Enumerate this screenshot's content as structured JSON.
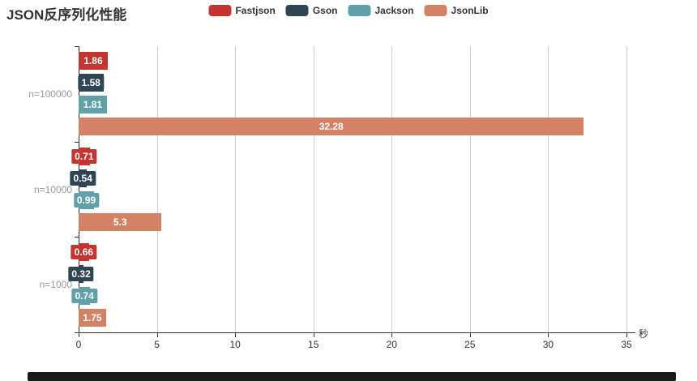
{
  "title": "JSON反序列化性能",
  "legend": {
    "items": [
      {
        "label": "Fastjson",
        "color": "#c23531"
      },
      {
        "label": "Gson",
        "color": "#2f4554"
      },
      {
        "label": "Jackson",
        "color": "#61a0a8"
      },
      {
        "label": "JsonLib",
        "color": "#d48265"
      }
    ]
  },
  "chart_data": {
    "type": "bar",
    "orientation": "horizontal",
    "title": "JSON反序列化性能",
    "categories": [
      "n=100000",
      "n=10000",
      "n=1000"
    ],
    "series": [
      {
        "name": "Fastjson",
        "color": "#c23531",
        "values": [
          1.86,
          0.71,
          0.66
        ]
      },
      {
        "name": "Gson",
        "color": "#2f4554",
        "values": [
          1.58,
          0.54,
          0.32
        ]
      },
      {
        "name": "Jackson",
        "color": "#61a0a8",
        "values": [
          1.81,
          0.99,
          0.74
        ]
      },
      {
        "name": "JsonLib",
        "color": "#d48265",
        "values": [
          32.28,
          5.3,
          1.75
        ]
      }
    ],
    "value_labels": [
      "1.86",
      "1.58",
      "1.81",
      "32.28",
      "0.71",
      "0.54",
      "0.99",
      "5.3",
      "0.66",
      "0.32",
      "0.74",
      "1.75"
    ],
    "x_axis": {
      "ticks": [
        0,
        5,
        10,
        15,
        20,
        25,
        30,
        35
      ],
      "min": 0,
      "max": 35,
      "unit": "秒"
    },
    "legend_position": "top",
    "grid": true
  },
  "colors": {
    "axis": "#333333",
    "gridline": "#cccccc",
    "category_label": "#999999",
    "tick_label": "#333333",
    "value_label_text": "#ffffff",
    "background": "#ffffff",
    "bottom_bar": "#1a1a1a"
  }
}
